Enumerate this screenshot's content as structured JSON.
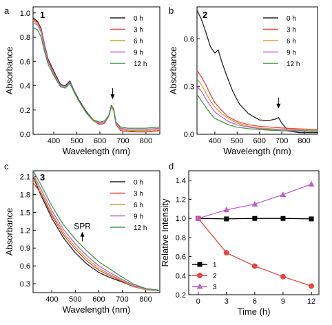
{
  "chart_data": [
    {
      "id": "a",
      "type": "line",
      "panel_letter": "a",
      "panel_number": "1",
      "xlabel": "Wavelength (nm)",
      "ylabel": "Absorbance",
      "xlim": [
        310,
        860
      ],
      "ylim": [
        0.0,
        1.05
      ],
      "xticks": [
        400,
        500,
        600,
        700,
        800
      ],
      "yticks": [
        0.0,
        0.2,
        0.4,
        0.6,
        0.8,
        1.0
      ],
      "ytick_labels": [
        "0.0",
        "0.2",
        "0.4",
        "0.6",
        "0.8",
        "1.0"
      ],
      "legend_position": "top-right",
      "annotations": [
        {
          "kind": "arrow-down",
          "x": 655,
          "y": 0.3
        }
      ],
      "series": [
        {
          "name": "0 h",
          "color": "#222222",
          "x": [
            310,
            330,
            345,
            360,
            375,
            390,
            410,
            430,
            450,
            470,
            490,
            510,
            540,
            570,
            600,
            620,
            640,
            650,
            660,
            670,
            690,
            720,
            760,
            800,
            860
          ],
          "y": [
            0.96,
            0.93,
            0.87,
            0.74,
            0.62,
            0.56,
            0.48,
            0.41,
            0.4,
            0.44,
            0.35,
            0.28,
            0.19,
            0.12,
            0.09,
            0.1,
            0.16,
            0.24,
            0.2,
            0.09,
            0.04,
            0.03,
            0.02,
            0.02,
            0.03
          ]
        },
        {
          "name": "3 h",
          "color": "#e8453c",
          "x": [
            310,
            330,
            345,
            360,
            375,
            390,
            410,
            430,
            450,
            470,
            490,
            510,
            540,
            570,
            600,
            620,
            640,
            650,
            660,
            670,
            690,
            720,
            760,
            800,
            860
          ],
          "y": [
            0.95,
            0.92,
            0.86,
            0.73,
            0.61,
            0.55,
            0.47,
            0.4,
            0.39,
            0.43,
            0.34,
            0.27,
            0.18,
            0.11,
            0.08,
            0.09,
            0.15,
            0.23,
            0.19,
            0.08,
            0.03,
            0.02,
            0.02,
            0.02,
            0.03
          ]
        },
        {
          "name": "6 h",
          "color": "#c9a53a",
          "x": [
            310,
            330,
            345,
            360,
            375,
            390,
            410,
            430,
            450,
            470,
            490,
            510,
            540,
            570,
            600,
            620,
            640,
            650,
            660,
            670,
            690,
            720,
            760,
            800,
            860
          ],
          "y": [
            0.94,
            0.91,
            0.85,
            0.72,
            0.6,
            0.54,
            0.46,
            0.4,
            0.39,
            0.43,
            0.34,
            0.27,
            0.18,
            0.11,
            0.09,
            0.1,
            0.15,
            0.23,
            0.19,
            0.09,
            0.04,
            0.03,
            0.03,
            0.03,
            0.04
          ]
        },
        {
          "name": "9 h",
          "color": "#c160c9",
          "x": [
            310,
            330,
            345,
            360,
            375,
            390,
            410,
            430,
            450,
            470,
            490,
            510,
            540,
            570,
            600,
            620,
            640,
            650,
            660,
            670,
            690,
            720,
            760,
            800,
            860
          ],
          "y": [
            0.92,
            0.9,
            0.84,
            0.71,
            0.6,
            0.54,
            0.46,
            0.4,
            0.39,
            0.43,
            0.34,
            0.27,
            0.18,
            0.12,
            0.09,
            0.1,
            0.16,
            0.23,
            0.2,
            0.09,
            0.05,
            0.04,
            0.04,
            0.04,
            0.05
          ]
        },
        {
          "name": "12 h",
          "color": "#3f9a48",
          "x": [
            310,
            330,
            345,
            360,
            375,
            390,
            410,
            430,
            450,
            470,
            490,
            510,
            540,
            570,
            600,
            620,
            640,
            650,
            660,
            670,
            690,
            720,
            760,
            800,
            860
          ],
          "y": [
            0.88,
            0.86,
            0.8,
            0.68,
            0.58,
            0.52,
            0.45,
            0.39,
            0.38,
            0.42,
            0.34,
            0.27,
            0.18,
            0.12,
            0.1,
            0.11,
            0.16,
            0.24,
            0.21,
            0.1,
            0.06,
            0.05,
            0.05,
            0.05,
            0.06
          ]
        }
      ]
    },
    {
      "id": "b",
      "type": "line",
      "panel_letter": "b",
      "panel_number": "2",
      "xlabel": "Wavelength (nm)",
      "ylabel": "Absorbance",
      "xlim": [
        320,
        860
      ],
      "ylim": [
        0.0,
        0.8
      ],
      "xticks": [
        400,
        500,
        600,
        700,
        800
      ],
      "yticks": [
        0.0,
        0.3,
        0.6
      ],
      "ytick_labels": [
        "0.0",
        "0.3",
        "0.6"
      ],
      "legend_position": "top-right",
      "annotations": [
        {
          "kind": "arrow-down",
          "x": 685,
          "y": 0.17
        }
      ],
      "series": [
        {
          "name": "0 h",
          "color": "#222222",
          "x": [
            320,
            340,
            360,
            380,
            400,
            415,
            430,
            450,
            480,
            510,
            550,
            600,
            640,
            670,
            685,
            700,
            730,
            780,
            860
          ],
          "y": [
            0.78,
            0.72,
            0.64,
            0.55,
            0.51,
            0.53,
            0.46,
            0.38,
            0.27,
            0.19,
            0.13,
            0.09,
            0.085,
            0.095,
            0.105,
            0.07,
            0.02,
            0.01,
            0.01
          ]
        },
        {
          "name": "3 h",
          "color": "#e8453c",
          "x": [
            320,
            340,
            360,
            380,
            400,
            430,
            460,
            500,
            550,
            600,
            650,
            700,
            760,
            860
          ],
          "y": [
            0.4,
            0.36,
            0.31,
            0.25,
            0.2,
            0.15,
            0.11,
            0.08,
            0.06,
            0.05,
            0.045,
            0.04,
            0.035,
            0.03
          ]
        },
        {
          "name": "6 h",
          "color": "#c9a53a",
          "x": [
            320,
            340,
            360,
            380,
            400,
            430,
            460,
            500,
            550,
            600,
            650,
            700,
            760,
            860
          ],
          "y": [
            0.35,
            0.31,
            0.26,
            0.21,
            0.17,
            0.13,
            0.1,
            0.07,
            0.05,
            0.04,
            0.035,
            0.03,
            0.03,
            0.025
          ]
        },
        {
          "name": "9 h",
          "color": "#c160c9",
          "x": [
            320,
            340,
            360,
            380,
            400,
            430,
            460,
            500,
            550,
            600,
            650,
            700,
            760,
            860
          ],
          "y": [
            0.3,
            0.27,
            0.22,
            0.18,
            0.14,
            0.11,
            0.08,
            0.06,
            0.045,
            0.035,
            0.03,
            0.028,
            0.025,
            0.02
          ]
        },
        {
          "name": "12 h",
          "color": "#3f9a48",
          "x": [
            320,
            340,
            360,
            380,
            400,
            430,
            460,
            500,
            550,
            600,
            650,
            700,
            760,
            860
          ],
          "y": [
            0.25,
            0.21,
            0.17,
            0.13,
            0.1,
            0.08,
            0.06,
            0.045,
            0.035,
            0.03,
            0.025,
            0.022,
            0.02,
            0.018
          ]
        }
      ]
    },
    {
      "id": "c",
      "type": "line",
      "panel_letter": "c",
      "panel_number": "3",
      "xlabel": "Wavelength (nm)",
      "ylabel": "Absorbance",
      "xlim": [
        320,
        860
      ],
      "ylim": [
        0.15,
        2.2
      ],
      "xticks": [
        400,
        500,
        600,
        700,
        800
      ],
      "yticks": [
        0.3,
        0.6,
        0.9,
        1.2,
        1.5,
        1.8,
        2.1
      ],
      "ytick_labels": [
        "0.3",
        "0.6",
        "0.9",
        "1.2",
        "1.5",
        "1.8",
        "2.1"
      ],
      "legend_position": "top-right",
      "annotations": [
        {
          "kind": "arrow-up",
          "x": 530,
          "y": 1.15,
          "label": "SPR"
        }
      ],
      "series": [
        {
          "name": "0 h",
          "color": "#222222",
          "x": [
            320,
            350,
            400,
            450,
            500,
            550,
            600,
            650,
            700,
            750,
            800,
            860
          ],
          "y": [
            2.1,
            1.82,
            1.4,
            1.07,
            0.82,
            0.63,
            0.49,
            0.4,
            0.33,
            0.25,
            0.2,
            0.18
          ]
        },
        {
          "name": "3 h",
          "color": "#e8453c",
          "x": [
            320,
            350,
            400,
            450,
            500,
            550,
            600,
            650,
            700,
            750,
            800,
            860
          ],
          "y": [
            2.0,
            1.84,
            1.45,
            1.12,
            0.88,
            0.68,
            0.53,
            0.43,
            0.34,
            0.25,
            0.2,
            0.18
          ]
        },
        {
          "name": "6 h",
          "color": "#c9a53a",
          "x": [
            320,
            350,
            400,
            450,
            500,
            550,
            600,
            650,
            700,
            750,
            800,
            860
          ],
          "y": [
            2.12,
            1.87,
            1.48,
            1.16,
            0.92,
            0.72,
            0.56,
            0.45,
            0.35,
            0.26,
            0.2,
            0.18
          ]
        },
        {
          "name": "9 h",
          "color": "#c160c9",
          "x": [
            320,
            350,
            400,
            450,
            500,
            550,
            600,
            650,
            700,
            750,
            800,
            860
          ],
          "y": [
            2.15,
            1.92,
            1.53,
            1.21,
            0.97,
            0.77,
            0.6,
            0.48,
            0.37,
            0.27,
            0.21,
            0.18
          ]
        },
        {
          "name": "12 h",
          "color": "#3f9a48",
          "x": [
            320,
            350,
            400,
            450,
            500,
            550,
            600,
            650,
            700,
            750,
            800,
            860
          ],
          "y": [
            2.2,
            1.99,
            1.61,
            1.29,
            1.05,
            0.85,
            0.67,
            0.54,
            0.41,
            0.29,
            0.22,
            0.19
          ]
        }
      ]
    },
    {
      "id": "d",
      "type": "line",
      "panel_letter": "d",
      "xlabel": "Time (h)",
      "ylabel": "Relative Intensity",
      "xlim": [
        -1,
        12.8
      ],
      "ylim": [
        0.2,
        1.5
      ],
      "xticks": [
        0,
        3,
        6,
        9,
        12
      ],
      "yticks": [
        0.2,
        0.4,
        0.6,
        0.8,
        1.0,
        1.2,
        1.4
      ],
      "ytick_labels": [
        "0.2",
        "0.4",
        "0.6",
        "0.8",
        "1.0",
        "1.2",
        "1.4"
      ],
      "legend_position": "bottom-left",
      "series": [
        {
          "name": "1",
          "color": "#000000",
          "marker": "square",
          "x": [
            0,
            3,
            6,
            9,
            12
          ],
          "y": [
            1.0,
            0.995,
            1.0,
            1.0,
            0.995
          ]
        },
        {
          "name": "2",
          "color": "#e8453c",
          "marker": "circle",
          "x": [
            0,
            3,
            6,
            9,
            12
          ],
          "y": [
            1.0,
            0.64,
            0.5,
            0.39,
            0.29
          ]
        },
        {
          "name": "3",
          "color": "#c160c9",
          "marker": "triangle",
          "x": [
            0,
            3,
            6,
            9,
            12
          ],
          "y": [
            1.0,
            1.09,
            1.15,
            1.25,
            1.36
          ]
        }
      ]
    }
  ]
}
